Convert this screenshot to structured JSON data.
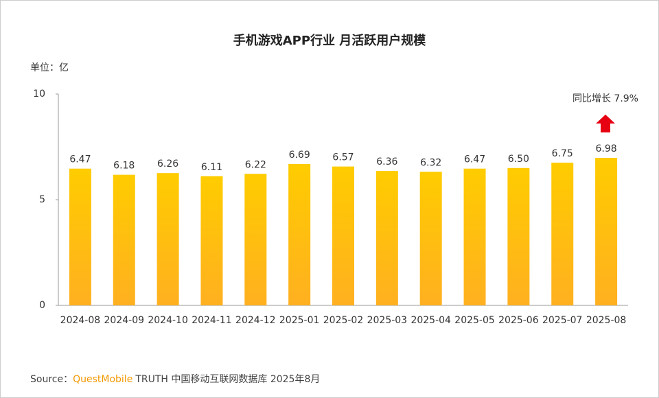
{
  "chart_data": {
    "type": "bar",
    "title": "手机游戏APP行业 月活跃用户规模",
    "unit_label": "单位：亿",
    "annotation": "同比增长 7.9%",
    "categories": [
      "2024-08",
      "2024-09",
      "2024-10",
      "2024-11",
      "2024-12",
      "2025-01",
      "2025-02",
      "2025-03",
      "2025-04",
      "2025-05",
      "2025-06",
      "2025-07",
      "2025-08"
    ],
    "values": [
      6.47,
      6.18,
      6.26,
      6.11,
      6.22,
      6.69,
      6.57,
      6.36,
      6.32,
      6.47,
      6.5,
      6.75,
      6.98
    ],
    "value_labels": [
      "6.47",
      "6.18",
      "6.26",
      "6.11",
      "6.22",
      "6.69",
      "6.57",
      "6.36",
      "6.32",
      "6.47",
      "6.50",
      "6.75",
      "6.98"
    ],
    "color": "#FFCC00",
    "annotation_color": "#E60012",
    "ylim": [
      0,
      10
    ],
    "yticks": [
      0,
      5,
      10
    ],
    "grid": false,
    "source": {
      "label": "Source：",
      "brand": "QuestMobile",
      "text": "TRUTH 中国移动互联网数据库 2025年8月"
    }
  }
}
